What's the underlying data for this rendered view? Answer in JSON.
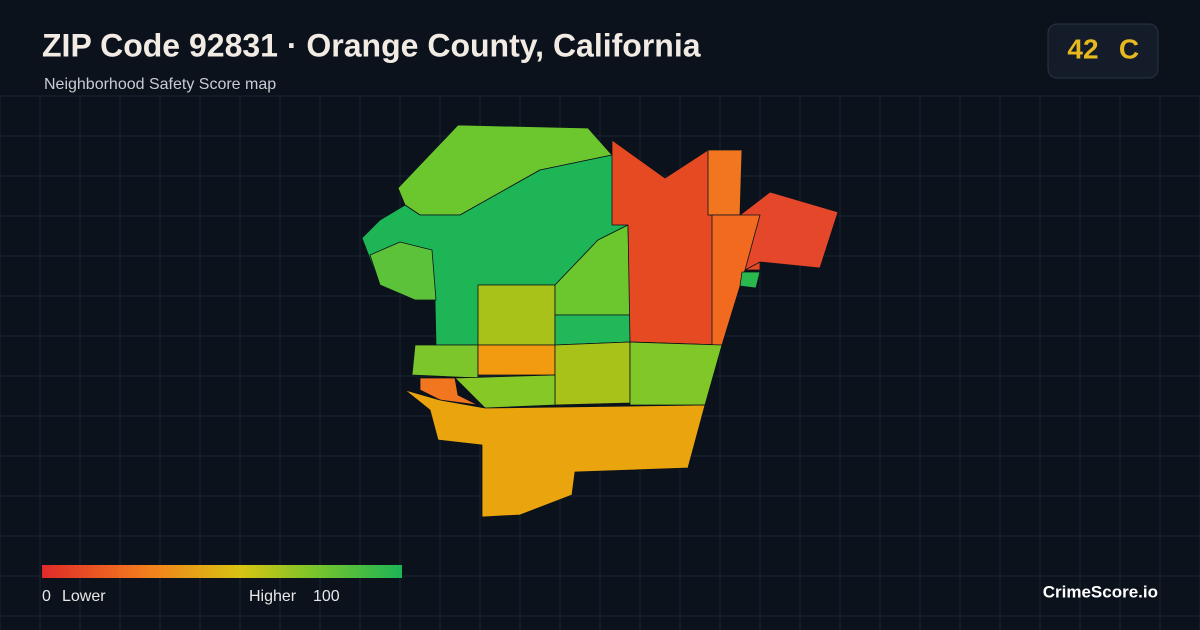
{
  "header": {
    "title": "ZIP Code 92831 · Orange County, California",
    "subtitle": "Neighborhood Safety Score map"
  },
  "score": {
    "value": 42,
    "grade": "C"
  },
  "legend": {
    "min": 0,
    "min_label": "Lower",
    "max_label": "Higher",
    "max": 100
  },
  "brand": "CrimeScore.io"
}
